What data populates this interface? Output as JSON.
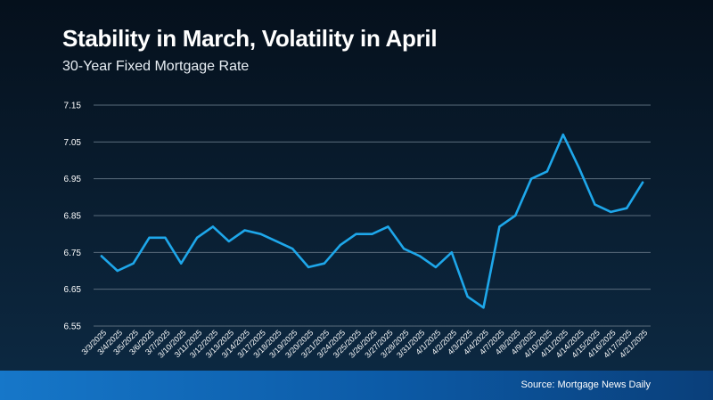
{
  "header": {
    "title": "Stability in March, Volatility in April",
    "subtitle": "30-Year Fixed Mortgage Rate"
  },
  "footer": {
    "source": "Source: Mortgage News Daily"
  },
  "colors": {
    "line": "#1ea7ea",
    "grid": "#5a6c7c",
    "footer_start": "#1677c9",
    "footer_end": "#0a3f7a"
  },
  "chart_data": {
    "type": "line",
    "title": "Stability in March, Volatility in April",
    "subtitle": "30-Year Fixed Mortgage Rate",
    "xlabel": "",
    "ylabel": "",
    "ylim": [
      6.55,
      7.15
    ],
    "yticks": [
      "7.15",
      "7.05",
      "6.95",
      "6.85",
      "6.75",
      "6.65",
      "6.55"
    ],
    "grid": true,
    "legend": "none",
    "categories": [
      "3/3/2025",
      "3/4/2025",
      "3/5/2025",
      "3/6/2025",
      "3/7/2025",
      "3/10/2025",
      "3/11/2025",
      "3/12/2025",
      "3/13/2025",
      "3/14/2025",
      "3/17/2025",
      "3/18/2025",
      "3/19/2025",
      "3/20/2025",
      "3/21/2025",
      "3/24/2025",
      "3/25/2025",
      "3/26/2025",
      "3/27/2025",
      "3/28/2025",
      "3/31/2025",
      "4/1/2025",
      "4/2/2025",
      "4/3/2025",
      "4/4/2025",
      "4/7/2025",
      "4/8/2025",
      "4/9/2025",
      "4/10/2025",
      "4/11/2025",
      "4/14/2025",
      "4/15/2025",
      "4/16/2025",
      "4/17/2025",
      "4/21/2025"
    ],
    "series": [
      {
        "values": [
          6.74,
          6.7,
          6.72,
          6.79,
          6.79,
          6.72,
          6.79,
          6.82,
          6.78,
          6.81,
          6.8,
          6.78,
          6.76,
          6.71,
          6.72,
          6.77,
          6.8,
          6.8,
          6.82,
          6.76,
          6.74,
          6.71,
          6.75,
          6.63,
          6.6,
          6.82,
          6.85,
          6.95,
          6.97,
          7.07,
          6.98,
          6.88,
          6.86,
          6.87,
          6.94
        ]
      }
    ]
  }
}
